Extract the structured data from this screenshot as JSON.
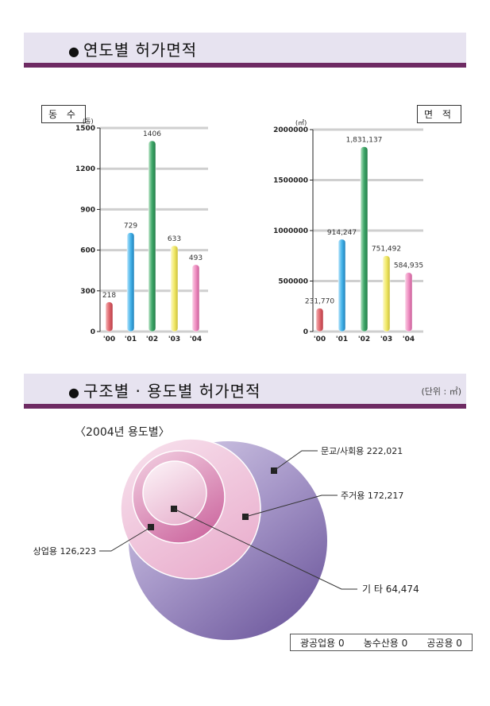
{
  "sections": {
    "yearly_title": "연도별 허가면적",
    "structure_title": "구조별 · 용도별 허가면적",
    "unit_note": "(단위 : ㎡)"
  },
  "labels": {
    "count_box": "동 수",
    "area_box": "면 적",
    "subtitle": "〈2004년 용도별〉"
  },
  "colors": {
    "bar_00": "#e0686e",
    "bar_01": "#45b4ea",
    "bar_02": "#3fa86a",
    "bar_03": "#f2ea6a",
    "bar_04": "#ef8fc2",
    "outer_circle": "#8f7bb8",
    "header_bar": "#6e2a63"
  },
  "chart_data": [
    {
      "type": "bar",
      "categories": [
        "'00",
        "'01",
        "'02",
        "'03",
        "'04"
      ],
      "values": [
        218,
        729,
        1406,
        633,
        493
      ],
      "data_labels": [
        "218",
        "729",
        "1406",
        "633",
        "493"
      ],
      "yticks": [
        "0",
        "300",
        "600",
        "900",
        "1200",
        "1500"
      ],
      "ylabel": "(동)",
      "ylim": [
        0,
        1500
      ],
      "grid": true
    },
    {
      "type": "bar",
      "categories": [
        "'00",
        "'01",
        "'02",
        "'03",
        "'04"
      ],
      "values": [
        231770,
        914247,
        1831137,
        751492,
        584935
      ],
      "data_labels": [
        "231,770",
        "914,247",
        "1,831,137",
        "751,492",
        "584,935"
      ],
      "yticks": [
        "0",
        "500000",
        "1000000",
        "1500000",
        "2000000"
      ],
      "ylabel": "(㎡)",
      "ylim": [
        0,
        2000000
      ],
      "grid": true
    },
    {
      "type": "bubble",
      "title": "〈2004년 용도별〉",
      "series": [
        {
          "name": "문교/사회용",
          "value": 222021,
          "label": "문교/사회용  222,021"
        },
        {
          "name": "주거용",
          "value": 172217,
          "label": "주거용  172,217"
        },
        {
          "name": "상업용",
          "value": 126223,
          "label": "상업용  126,223"
        },
        {
          "name": "기 타",
          "value": 64474,
          "label": "기  타  64,474"
        }
      ],
      "zero_items": [
        "광공업용 0",
        "농수산용 0",
        "공공용 0"
      ]
    }
  ]
}
